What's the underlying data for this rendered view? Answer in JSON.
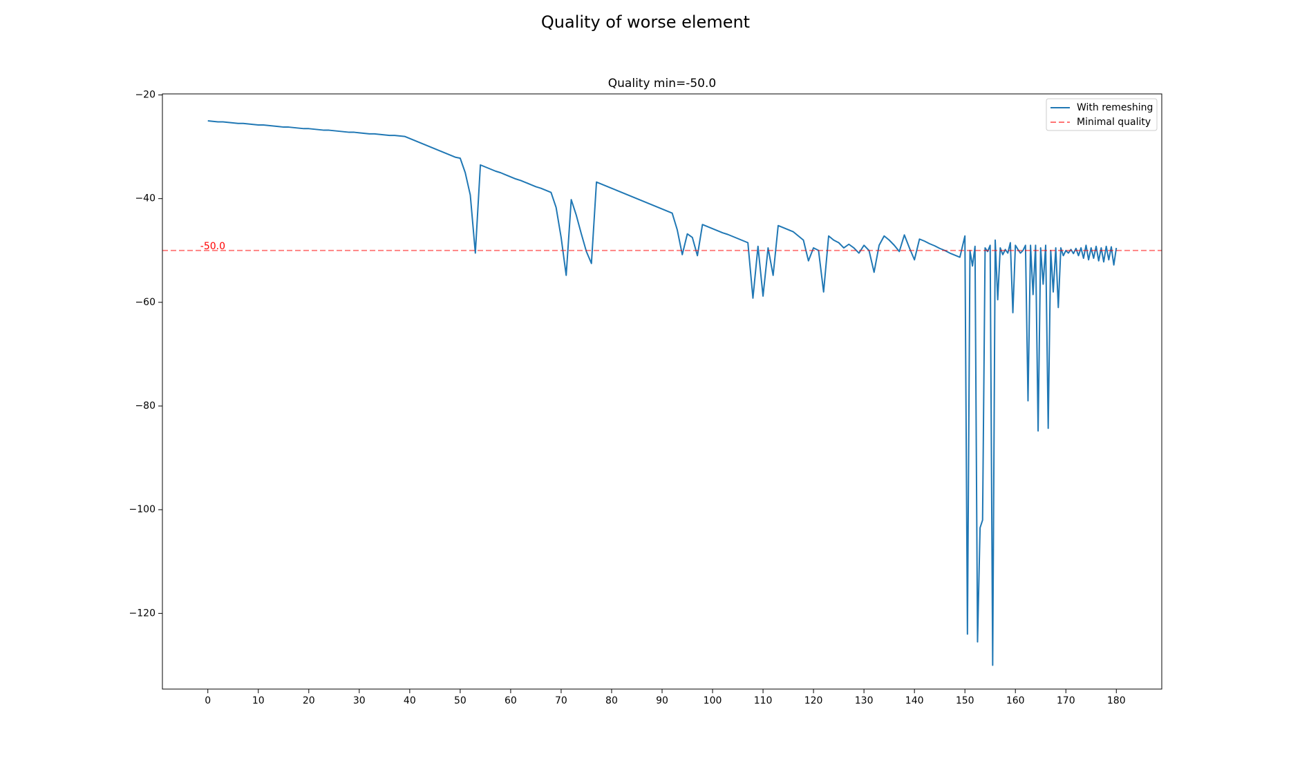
{
  "chart_data": {
    "type": "line",
    "title": "Quality of worse element",
    "subtitle": "Quality min=-50.0",
    "x": [
      0,
      1,
      2,
      3,
      4,
      5,
      6,
      7,
      8,
      9,
      10,
      11,
      12,
      13,
      14,
      15,
      16,
      17,
      18,
      19,
      20,
      21,
      22,
      23,
      24,
      25,
      26,
      27,
      28,
      29,
      30,
      31,
      32,
      33,
      34,
      35,
      36,
      37,
      38,
      39,
      40,
      41,
      42,
      43,
      44,
      45,
      46,
      47,
      48,
      49,
      50,
      51,
      52,
      53,
      54,
      55,
      56,
      57,
      58,
      59,
      60,
      61,
      62,
      63,
      64,
      65,
      66,
      67,
      68,
      69,
      70,
      71,
      72,
      73,
      74,
      75,
      76,
      77,
      78,
      79,
      80,
      81,
      82,
      83,
      84,
      85,
      86,
      87,
      88,
      89,
      90,
      91,
      92,
      93,
      94,
      95,
      96,
      97,
      98,
      99,
      100,
      101,
      102,
      103,
      104,
      105,
      106,
      107,
      108,
      109,
      110,
      111,
      112,
      113,
      114,
      115,
      116,
      117,
      118,
      119,
      120,
      121,
      122,
      123,
      124,
      125,
      126,
      127,
      128,
      129,
      130,
      131,
      132,
      133,
      134,
      135,
      136,
      137,
      138,
      139,
      140,
      141,
      142,
      143,
      144,
      145,
      146,
      147,
      148,
      149,
      150,
      150.5,
      151,
      151.5,
      152,
      152.5,
      153,
      153.5,
      154,
      154.5,
      155,
      155.5,
      156,
      156.5,
      157,
      157.5,
      158,
      158.5,
      159,
      159.5,
      160,
      160.5,
      161,
      161.5,
      162,
      162.5,
      163,
      163.5,
      164,
      164.5,
      165,
      165.5,
      166,
      166.5,
      167,
      167.5,
      168,
      168.5,
      169,
      169.5,
      170,
      170.5,
      171,
      171.5,
      172,
      172.5,
      173,
      173.5,
      174,
      174.5,
      175,
      175.5,
      176,
      176.5,
      177,
      177.5,
      178,
      178.5,
      179,
      179.5,
      180
    ],
    "series": [
      {
        "name": "With remeshing",
        "color": "#1f77b4",
        "values": [
          -25.0,
          -25.1,
          -25.2,
          -25.2,
          -25.3,
          -25.4,
          -25.5,
          -25.5,
          -25.6,
          -25.7,
          -25.8,
          -25.8,
          -25.9,
          -26.0,
          -26.1,
          -26.2,
          -26.2,
          -26.3,
          -26.4,
          -26.5,
          -26.5,
          -26.6,
          -26.7,
          -26.8,
          -26.8,
          -26.9,
          -27.0,
          -27.1,
          -27.2,
          -27.2,
          -27.3,
          -27.4,
          -27.5,
          -27.5,
          -27.6,
          -27.7,
          -27.8,
          -27.8,
          -27.9,
          -28.0,
          -28.4,
          -28.8,
          -29.2,
          -29.6,
          -30.0,
          -30.4,
          -30.8,
          -31.2,
          -31.6,
          -32.0,
          -32.2,
          -35.0,
          -39.3,
          -50.5,
          -33.5,
          -33.9,
          -34.3,
          -34.7,
          -35.0,
          -35.4,
          -35.8,
          -36.2,
          -36.5,
          -36.9,
          -37.3,
          -37.7,
          -38.0,
          -38.4,
          -38.8,
          -41.7,
          -47.5,
          -54.8,
          -40.2,
          -43.2,
          -46.8,
          -50.2,
          -52.5,
          -36.8,
          -37.2,
          -37.6,
          -38.0,
          -38.4,
          -38.8,
          -39.2,
          -39.6,
          -40.0,
          -40.4,
          -40.8,
          -41.2,
          -41.6,
          -42.0,
          -42.4,
          -42.8,
          -46.0,
          -50.8,
          -46.8,
          -47.5,
          -51.0,
          -45.0,
          -45.4,
          -45.8,
          -46.2,
          -46.6,
          -46.9,
          -47.3,
          -47.7,
          -48.1,
          -48.5,
          -59.2,
          -49.2,
          -58.8,
          -49.5,
          -54.8,
          -45.2,
          -45.6,
          -46.0,
          -46.4,
          -47.2,
          -48.0,
          -52.0,
          -49.5,
          -50.0,
          -58.0,
          -47.2,
          -48.0,
          -48.5,
          -49.5,
          -48.8,
          -49.5,
          -50.5,
          -49.0,
          -50.0,
          -54.2,
          -49.0,
          -47.2,
          -48.0,
          -49.0,
          -50.2,
          -47.0,
          -49.5,
          -51.8,
          -47.8,
          -48.2,
          -48.7,
          -49.1,
          -49.6,
          -50.0,
          -50.5,
          -50.9,
          -51.3,
          -47.2,
          -124,
          -50,
          -53,
          -49.2,
          -125.5,
          -103.5,
          -102,
          -49.5,
          -50.2,
          -49,
          -130,
          -48,
          -59.5,
          -49.5,
          -50.8,
          -49.8,
          -50.5,
          -48.5,
          -62,
          -49,
          -49.8,
          -50.5,
          -50,
          -49,
          -79,
          -49,
          -58.5,
          -49,
          -84.8,
          -49.5,
          -56.5,
          -49,
          -84.3,
          -50,
          -58,
          -49.5,
          -61,
          -49.5,
          -51,
          -50,
          -50.5,
          -49.8,
          -50.6,
          -49.6,
          -51,
          -49.5,
          -51.5,
          -49,
          -51.8,
          -49.5,
          -51.5,
          -49.2,
          -52,
          -49.5,
          -52.2,
          -49.2,
          -51.8,
          -49.3,
          -52.8,
          -49.5
        ]
      }
    ],
    "threshold": {
      "name": "Minimal quality",
      "value": -50,
      "label": "-50.0",
      "color": "#ff0000"
    },
    "xlim": [
      -9,
      189
    ],
    "ylim": [
      -134.6,
      -19.8
    ],
    "xticks": [
      0,
      10,
      20,
      30,
      40,
      50,
      60,
      70,
      80,
      90,
      100,
      110,
      120,
      130,
      140,
      150,
      160,
      170,
      180
    ],
    "yticks": [
      {
        "value": -20,
        "label": "−20"
      },
      {
        "value": -40,
        "label": "−40"
      },
      {
        "value": -60,
        "label": "−60"
      },
      {
        "value": -80,
        "label": "−80"
      },
      {
        "value": -100,
        "label": "−100"
      },
      {
        "value": -120,
        "label": "−120"
      }
    ],
    "legend": "upper right"
  }
}
